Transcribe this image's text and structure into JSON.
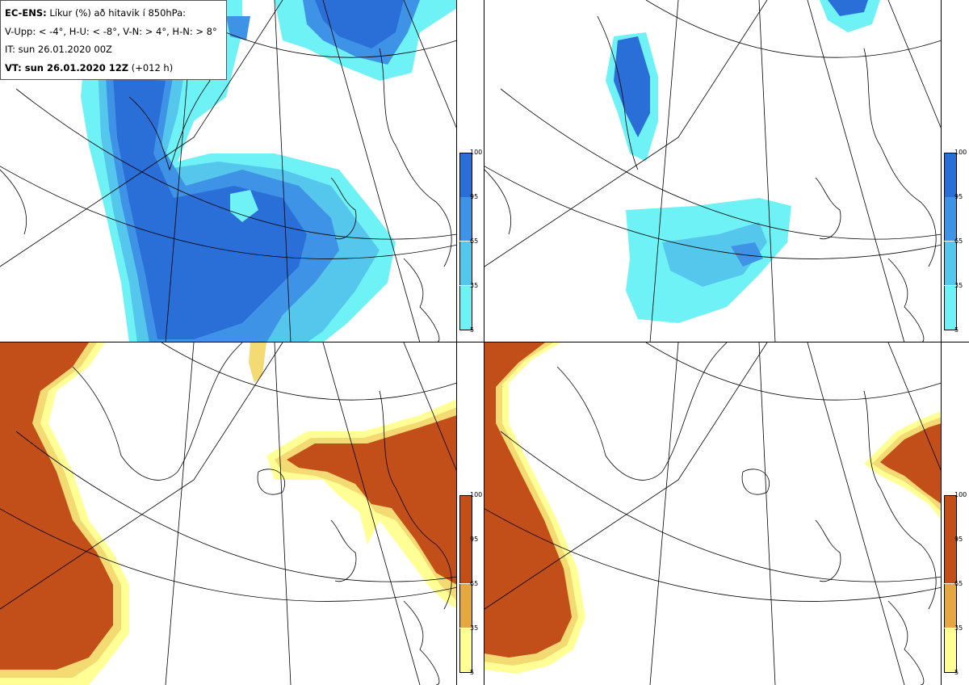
{
  "legend": {
    "model": "EC-ENS:",
    "title": "Líkur (%) að hitavik í 850hPa:",
    "thresholds": "V-Upp: < -4°, H-U: < -8°, V-N: > 4°, H-N: > 8°",
    "issue_time": "IT: sun 26.01.2020 00Z",
    "valid_label": "VT: sun 26.01.2020 12Z",
    "lead": "(+012 h)"
  },
  "colorbar_cold": {
    "ticks": [
      "100",
      "95",
      "65",
      "35",
      "5"
    ],
    "colors": [
      "#2a6fd8",
      "#3f93e6",
      "#55c6ec",
      "#6ff2f6"
    ]
  },
  "colorbar_warm": {
    "ticks": [
      "100",
      "95",
      "65",
      "35",
      "5"
    ],
    "colors": [
      "#c24e1a",
      "#e5a840",
      "#f4da72",
      "#ffff96"
    ]
  },
  "panels": [
    {
      "id": "V-Upp",
      "description": "probability anomaly < -4°"
    },
    {
      "id": "H-U",
      "description": "probability anomaly < -8°"
    },
    {
      "id": "V-N",
      "description": "probability anomaly > 4°"
    },
    {
      "id": "H-N",
      "description": "probability anomaly > 8°"
    }
  ]
}
